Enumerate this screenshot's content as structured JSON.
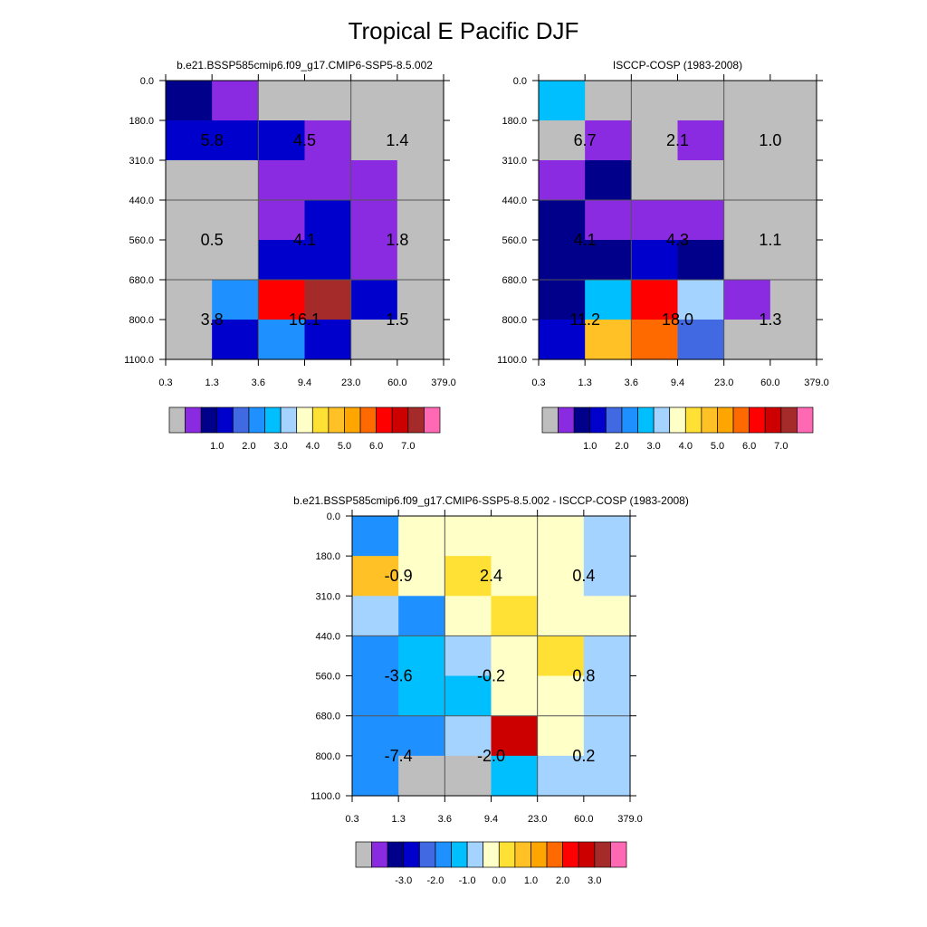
{
  "figure": {
    "title": "Tropical E Pacific DJF"
  },
  "chart_data": [
    {
      "type": "heatmap",
      "title": "b.e21.BSSP585cmip6.f09_g17.CMIP6-SSP5-8.5.002",
      "xlabel": "",
      "ylabel": "",
      "x_ticks": [
        "0.3",
        "1.3",
        "3.6",
        "9.4",
        "23.0",
        "60.0",
        "379.0"
      ],
      "y_ticks": [
        "0.0",
        "180.0",
        "310.0",
        "440.0",
        "560.0",
        "680.0",
        "800.0",
        "1100.0"
      ],
      "color_index": [
        [
          2,
          1,
          0,
          0,
          0,
          0
        ],
        [
          3,
          3,
          3,
          1,
          0,
          0
        ],
        [
          0,
          0,
          1,
          1,
          1,
          0
        ],
        [
          0,
          0,
          1,
          3,
          1,
          0
        ],
        [
          0,
          0,
          3,
          3,
          1,
          0
        ],
        [
          0,
          5,
          13,
          15,
          3,
          0
        ],
        [
          0,
          3,
          5,
          3,
          0,
          0
        ]
      ],
      "box_labels": [
        [
          "5.8",
          "4.5",
          "1.4"
        ],
        [
          "0.5",
          "4.1",
          "1.8"
        ],
        [
          "3.8",
          "16.1",
          "1.5"
        ]
      ],
      "colorbar": {
        "colors": [
          "#bebebe",
          "#8a2be2",
          "#00008b",
          "#0000cd",
          "#4169e1",
          "#1e90ff",
          "#00bfff",
          "#a4d3ff",
          "#ffffc8",
          "#ffe135",
          "#ffc125",
          "#ffa500",
          "#ff6a00",
          "#ff0000",
          "#cd0000",
          "#a52a2a",
          "#ff69b4"
        ],
        "labels": [
          "1.0",
          "2.0",
          "3.0",
          "4.0",
          "5.0",
          "6.0",
          "7.0"
        ]
      }
    },
    {
      "type": "heatmap",
      "title": "ISCCP-COSP (1983-2008)",
      "xlabel": "",
      "ylabel": "",
      "x_ticks": [
        "0.3",
        "1.3",
        "3.6",
        "9.4",
        "23.0",
        "60.0",
        "379.0"
      ],
      "y_ticks": [
        "0.0",
        "180.0",
        "310.0",
        "440.0",
        "560.0",
        "680.0",
        "800.0",
        "1100.0"
      ],
      "color_index": [
        [
          6,
          0,
          0,
          0,
          0,
          0
        ],
        [
          0,
          1,
          0,
          1,
          0,
          0
        ],
        [
          1,
          2,
          0,
          0,
          0,
          0
        ],
        [
          2,
          1,
          1,
          1,
          0,
          0
        ],
        [
          2,
          2,
          3,
          2,
          0,
          0
        ],
        [
          2,
          6,
          13,
          7,
          1,
          0
        ],
        [
          3,
          10,
          12,
          4,
          0,
          0
        ]
      ],
      "box_labels": [
        [
          "6.7",
          "2.1",
          "1.0"
        ],
        [
          "4.1",
          "4.3",
          "1.1"
        ],
        [
          "11.2",
          "18.0",
          "1.3"
        ]
      ],
      "colorbar": {
        "colors": [
          "#bebebe",
          "#8a2be2",
          "#00008b",
          "#0000cd",
          "#4169e1",
          "#1e90ff",
          "#00bfff",
          "#a4d3ff",
          "#ffffc8",
          "#ffe135",
          "#ffc125",
          "#ffa500",
          "#ff6a00",
          "#ff0000",
          "#cd0000",
          "#a52a2a",
          "#ff69b4"
        ],
        "labels": [
          "1.0",
          "2.0",
          "3.0",
          "4.0",
          "5.0",
          "6.0",
          "7.0"
        ]
      }
    },
    {
      "type": "heatmap",
      "title": "b.e21.BSSP585cmip6.f09_g17.CMIP6-SSP5-8.5.002 - ISCCP-COSP (1983-2008)",
      "xlabel": "",
      "ylabel": "",
      "x_ticks": [
        "0.3",
        "1.3",
        "3.6",
        "9.4",
        "23.0",
        "60.0",
        "379.0"
      ],
      "y_ticks": [
        "0.0",
        "180.0",
        "310.0",
        "440.0",
        "560.0",
        "680.0",
        "800.0",
        "1100.0"
      ],
      "color_index": [
        [
          5,
          8,
          8,
          8,
          8,
          7
        ],
        [
          10,
          8,
          9,
          8,
          8,
          7
        ],
        [
          7,
          5,
          8,
          9,
          8,
          8
        ],
        [
          5,
          6,
          7,
          8,
          9,
          7
        ],
        [
          5,
          6,
          6,
          8,
          8,
          7
        ],
        [
          5,
          5,
          7,
          14,
          8,
          7
        ],
        [
          5,
          0,
          0,
          6,
          7,
          7
        ]
      ],
      "box_labels": [
        [
          "-0.9",
          "2.4",
          "0.4"
        ],
        [
          "-3.6",
          "-0.2",
          "0.8"
        ],
        [
          "-7.4",
          "-2.0",
          "0.2"
        ]
      ],
      "colorbar": {
        "colors": [
          "#bebebe",
          "#8a2be2",
          "#00008b",
          "#0000cd",
          "#4169e1",
          "#1e90ff",
          "#00bfff",
          "#a4d3ff",
          "#ffffc8",
          "#ffe135",
          "#ffc125",
          "#ffa500",
          "#ff6a00",
          "#ff0000",
          "#cd0000",
          "#a52a2a",
          "#ff69b4"
        ],
        "labels": [
          "-3.0",
          "-2.0",
          "-1.0",
          "0.0",
          "1.0",
          "2.0",
          "3.0"
        ]
      }
    }
  ]
}
